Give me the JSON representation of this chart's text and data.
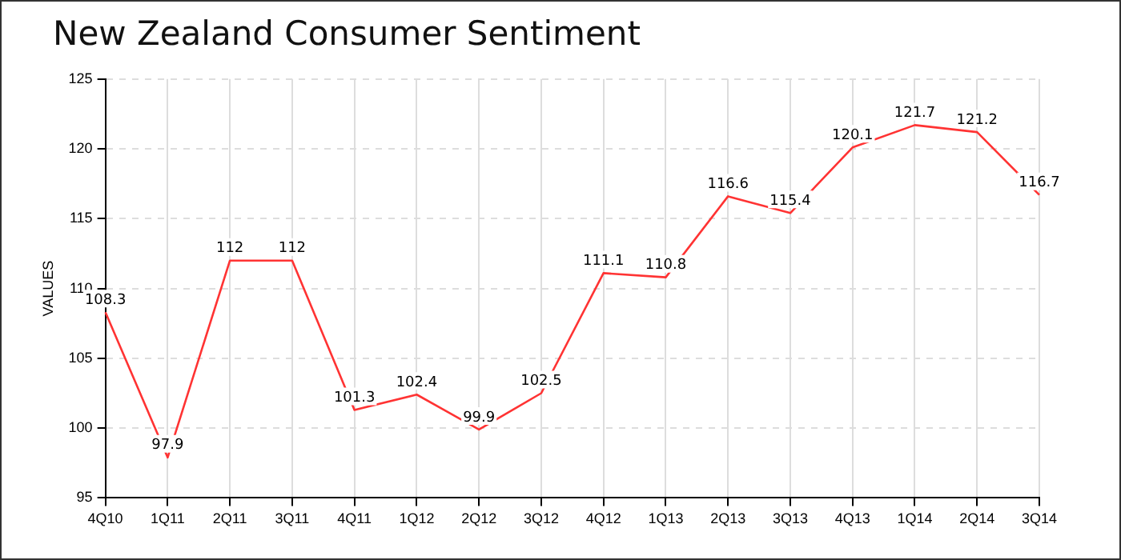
{
  "chart_data": {
    "type": "line",
    "title": "New Zealand Consumer Sentiment",
    "ylabel": "VALUES",
    "categories": [
      "4Q10",
      "1Q11",
      "2Q11",
      "3Q11",
      "4Q11",
      "1Q12",
      "2Q12",
      "3Q12",
      "4Q12",
      "1Q13",
      "2Q13",
      "3Q13",
      "4Q13",
      "1Q14",
      "2Q14",
      "3Q14"
    ],
    "series": [
      {
        "color": "#ff3333",
        "values": [
          108.3,
          97.9,
          112,
          112,
          101.3,
          102.4,
          99.9,
          102.5,
          111.1,
          110.8,
          116.6,
          115.4,
          120.1,
          121.7,
          121.2,
          116.7
        ]
      }
    ],
    "ylim": [
      95,
      125
    ],
    "yticks": [
      95,
      100,
      105,
      110,
      115,
      120,
      125
    ],
    "grid": true,
    "legend": false,
    "marker": "none",
    "line_style": "solid",
    "data_labels": true
  }
}
